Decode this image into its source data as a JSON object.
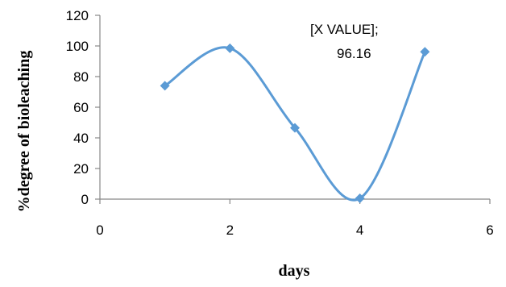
{
  "chart_data": {
    "type": "scatter",
    "title": "",
    "xlabel": "days",
    "ylabel": "%degree of bioleaching",
    "xlim": [
      0,
      6
    ],
    "ylim": [
      0,
      120
    ],
    "xticks": [
      0,
      2,
      4,
      6
    ],
    "yticks": [
      0,
      20,
      40,
      60,
      80,
      100,
      120
    ],
    "grid": false,
    "smooth": true,
    "marker": "diamond",
    "color": "#5b9bd5",
    "series": [
      {
        "x": [
          1,
          2,
          3,
          4,
          5
        ],
        "y": [
          74,
          98.5,
          46.5,
          0.5,
          96.16
        ]
      }
    ],
    "annotation": {
      "line1": "[X VALUE];",
      "line2": "96.16"
    }
  }
}
